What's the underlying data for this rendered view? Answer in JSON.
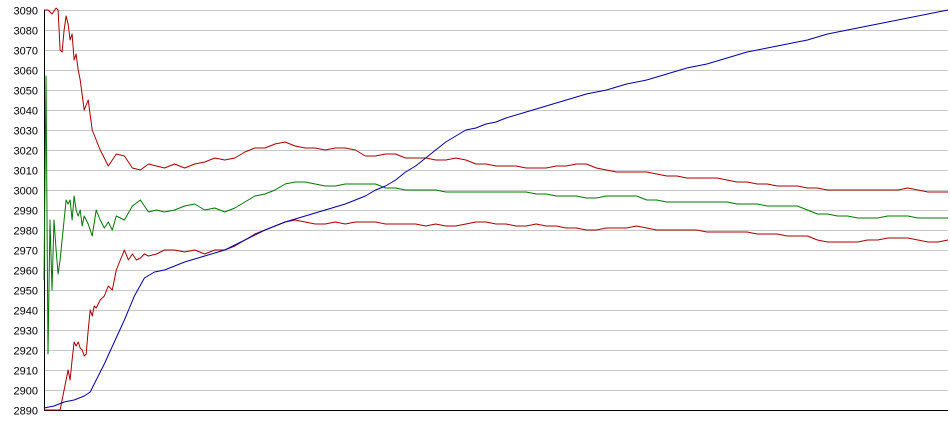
{
  "chart_data": {
    "type": "line",
    "title": "",
    "xlabel": "",
    "ylabel": "",
    "ylim": [
      2890,
      3090
    ],
    "xlim": [
      0,
      450
    ],
    "yticks": [
      2890,
      2900,
      2910,
      2920,
      2930,
      2940,
      2950,
      2960,
      2970,
      2980,
      2990,
      3000,
      3010,
      3020,
      3030,
      3040,
      3050,
      3060,
      3070,
      3080,
      3090
    ],
    "grid": true,
    "legend": "none",
    "colors": {
      "upper_band": "#aa0000",
      "lower_band": "#aa0000",
      "middle": "#007700",
      "trend": "#0000aa",
      "grid": "#c8c8c8",
      "axis": "#000000"
    },
    "series": [
      {
        "key": "upper_band",
        "x": [
          0,
          2,
          4,
          6,
          7,
          8,
          9,
          10,
          11,
          12,
          13,
          14,
          15,
          16,
          17,
          18,
          20,
          22,
          24,
          26,
          28,
          32,
          36,
          40,
          44,
          48,
          52,
          56,
          60,
          65,
          70,
          75,
          80,
          85,
          90,
          95,
          100,
          105,
          110,
          115,
          120,
          125,
          130,
          135,
          140,
          145,
          150,
          155,
          160,
          165,
          170,
          175,
          180,
          185,
          190,
          195,
          200,
          205,
          210,
          215,
          220,
          225,
          230,
          235,
          240,
          245,
          250,
          255,
          260,
          265,
          270,
          275,
          280,
          285,
          290,
          295,
          300,
          305,
          310,
          315,
          320,
          325,
          330,
          335,
          340,
          345,
          350,
          355,
          360,
          365,
          370,
          375,
          380,
          385,
          390,
          395,
          400,
          405,
          410,
          415,
          420,
          425,
          430,
          435,
          440,
          445,
          450
        ],
        "values": [
          3090,
          3090,
          3088,
          3091,
          3090,
          3070,
          3069,
          3080,
          3087,
          3083,
          3075,
          3078,
          3065,
          3068,
          3060,
          3055,
          3040,
          3045,
          3030,
          3025,
          3020,
          3012,
          3018,
          3017,
          3011,
          3010,
          3013,
          3012,
          3011,
          3013,
          3011,
          3013,
          3014,
          3016,
          3015,
          3016,
          3019,
          3021,
          3021,
          3023,
          3024,
          3022,
          3021,
          3021,
          3020,
          3021,
          3021,
          3020,
          3017,
          3017,
          3018,
          3018,
          3016,
          3016,
          3016,
          3015,
          3015,
          3016,
          3015,
          3013,
          3013,
          3012,
          3012,
          3012,
          3011,
          3011,
          3011,
          3012,
          3012,
          3013,
          3013,
          3011,
          3010,
          3009,
          3009,
          3009,
          3009,
          3008,
          3007,
          3007,
          3006,
          3006,
          3006,
          3006,
          3005,
          3004,
          3004,
          3003,
          3003,
          3002,
          3002,
          3002,
          3001,
          3001,
          3000,
          3000,
          3000,
          3000,
          3000,
          3000,
          3000,
          3000,
          3001,
          3000,
          2999,
          2999,
          2999
        ]
      },
      {
        "key": "middle",
        "x": [
          0,
          1,
          2,
          3,
          4,
          5,
          6,
          7,
          8,
          9,
          10,
          11,
          12,
          13,
          14,
          15,
          16,
          17,
          18,
          19,
          20,
          22,
          24,
          26,
          28,
          30,
          32,
          34,
          36,
          40,
          44,
          48,
          52,
          56,
          60,
          65,
          70,
          75,
          80,
          85,
          90,
          95,
          100,
          105,
          110,
          115,
          120,
          125,
          130,
          135,
          140,
          145,
          150,
          155,
          160,
          165,
          170,
          175,
          180,
          185,
          190,
          195,
          200,
          205,
          210,
          215,
          220,
          225,
          230,
          235,
          240,
          245,
          250,
          255,
          260,
          265,
          270,
          275,
          280,
          285,
          290,
          295,
          300,
          305,
          310,
          315,
          320,
          325,
          330,
          335,
          340,
          345,
          350,
          355,
          360,
          365,
          370,
          375,
          380,
          385,
          390,
          395,
          400,
          405,
          410,
          415,
          420,
          425,
          430,
          435,
          440,
          445,
          450
        ],
        "values": [
          2955,
          3057,
          2918,
          2985,
          2950,
          2985,
          2970,
          2958,
          2965,
          2975,
          2985,
          2995,
          2993,
          2995,
          2985,
          2997,
          2990,
          2987,
          2990,
          2982,
          2987,
          2983,
          2977,
          2990,
          2985,
          2981,
          2984,
          2980,
          2987,
          2985,
          2992,
          2995,
          2989,
          2990,
          2989,
          2990,
          2992,
          2993,
          2990,
          2991,
          2989,
          2991,
          2994,
          2997,
          2998,
          3000,
          3003,
          3004,
          3004,
          3003,
          3002,
          3002,
          3003,
          3003,
          3003,
          3003,
          3001,
          3001,
          3000,
          3000,
          3000,
          3000,
          2999,
          2999,
          2999,
          2999,
          2999,
          2999,
          2999,
          2999,
          2999,
          2998,
          2998,
          2997,
          2997,
          2997,
          2996,
          2996,
          2997,
          2997,
          2997,
          2997,
          2995,
          2995,
          2994,
          2994,
          2994,
          2994,
          2994,
          2994,
          2994,
          2993,
          2993,
          2993,
          2992,
          2992,
          2992,
          2992,
          2990,
          2988,
          2988,
          2987,
          2987,
          2986,
          2986,
          2986,
          2987,
          2987,
          2987,
          2986,
          2986,
          2986,
          2986
        ]
      },
      {
        "key": "lower_band",
        "x": [
          0,
          4,
          8,
          10,
          11,
          12,
          13,
          14,
          15,
          16,
          17,
          18,
          19,
          20,
          21,
          22,
          23,
          24,
          25,
          26,
          28,
          30,
          32,
          34,
          36,
          38,
          40,
          42,
          44,
          46,
          48,
          50,
          52,
          56,
          60,
          65,
          70,
          75,
          80,
          85,
          90,
          95,
          100,
          105,
          110,
          115,
          120,
          125,
          130,
          135,
          140,
          145,
          150,
          155,
          160,
          165,
          170,
          175,
          180,
          185,
          190,
          195,
          200,
          205,
          210,
          215,
          220,
          225,
          230,
          235,
          240,
          245,
          250,
          255,
          260,
          265,
          270,
          275,
          280,
          285,
          290,
          295,
          300,
          305,
          310,
          315,
          320,
          325,
          330,
          335,
          340,
          345,
          350,
          355,
          360,
          365,
          370,
          375,
          380,
          385,
          390,
          395,
          400,
          405,
          410,
          415,
          420,
          425,
          430,
          435,
          440,
          445,
          450
        ],
        "values": [
          2890,
          2890,
          2890,
          2900,
          2905,
          2910,
          2905,
          2915,
          2924,
          2922,
          2924,
          2921,
          2920,
          2917,
          2918,
          2930,
          2940,
          2937,
          2942,
          2941,
          2945,
          2947,
          2952,
          2950,
          2960,
          2965,
          2970,
          2965,
          2968,
          2965,
          2966,
          2968,
          2967,
          2968,
          2970,
          2970,
          2969,
          2970,
          2968,
          2970,
          2970,
          2972,
          2975,
          2978,
          2980,
          2982,
          2984,
          2985,
          2984,
          2983,
          2983,
          2984,
          2983,
          2984,
          2984,
          2984,
          2983,
          2983,
          2983,
          2983,
          2982,
          2983,
          2982,
          2982,
          2983,
          2984,
          2984,
          2983,
          2983,
          2982,
          2982,
          2983,
          2982,
          2982,
          2981,
          2981,
          2980,
          2980,
          2981,
          2981,
          2981,
          2982,
          2981,
          2980,
          2980,
          2980,
          2980,
          2980,
          2979,
          2979,
          2979,
          2979,
          2979,
          2978,
          2978,
          2978,
          2977,
          2977,
          2977,
          2975,
          2974,
          2974,
          2974,
          2974,
          2975,
          2975,
          2976,
          2976,
          2976,
          2975,
          2974,
          2974,
          2975
        ]
      },
      {
        "key": "trend",
        "x": [
          0,
          5,
          10,
          15,
          20,
          23,
          25,
          30,
          35,
          40,
          45,
          50,
          55,
          60,
          65,
          70,
          80,
          90,
          100,
          110,
          120,
          130,
          140,
          150,
          160,
          165,
          170,
          175,
          180,
          185,
          190,
          195,
          200,
          205,
          210,
          215,
          220,
          225,
          230,
          240,
          250,
          260,
          270,
          280,
          290,
          300,
          310,
          320,
          330,
          340,
          350,
          360,
          370,
          380,
          390,
          400,
          410,
          420,
          430,
          440,
          450
        ],
        "values": [
          2891,
          2892,
          2894,
          2895,
          2897,
          2899,
          2903,
          2913,
          2924,
          2935,
          2947,
          2956,
          2959,
          2960,
          2962,
          2964,
          2967,
          2970,
          2975,
          2980,
          2984,
          2987,
          2990,
          2993,
          2997,
          3000,
          3002,
          3005,
          3009,
          3012,
          3016,
          3020,
          3024,
          3027,
          3030,
          3031,
          3033,
          3034,
          3036,
          3039,
          3042,
          3045,
          3048,
          3050,
          3053,
          3055,
          3058,
          3061,
          3063,
          3066,
          3069,
          3071,
          3073,
          3075,
          3078,
          3080,
          3082,
          3084,
          3086,
          3088,
          3090
        ]
      }
    ]
  }
}
